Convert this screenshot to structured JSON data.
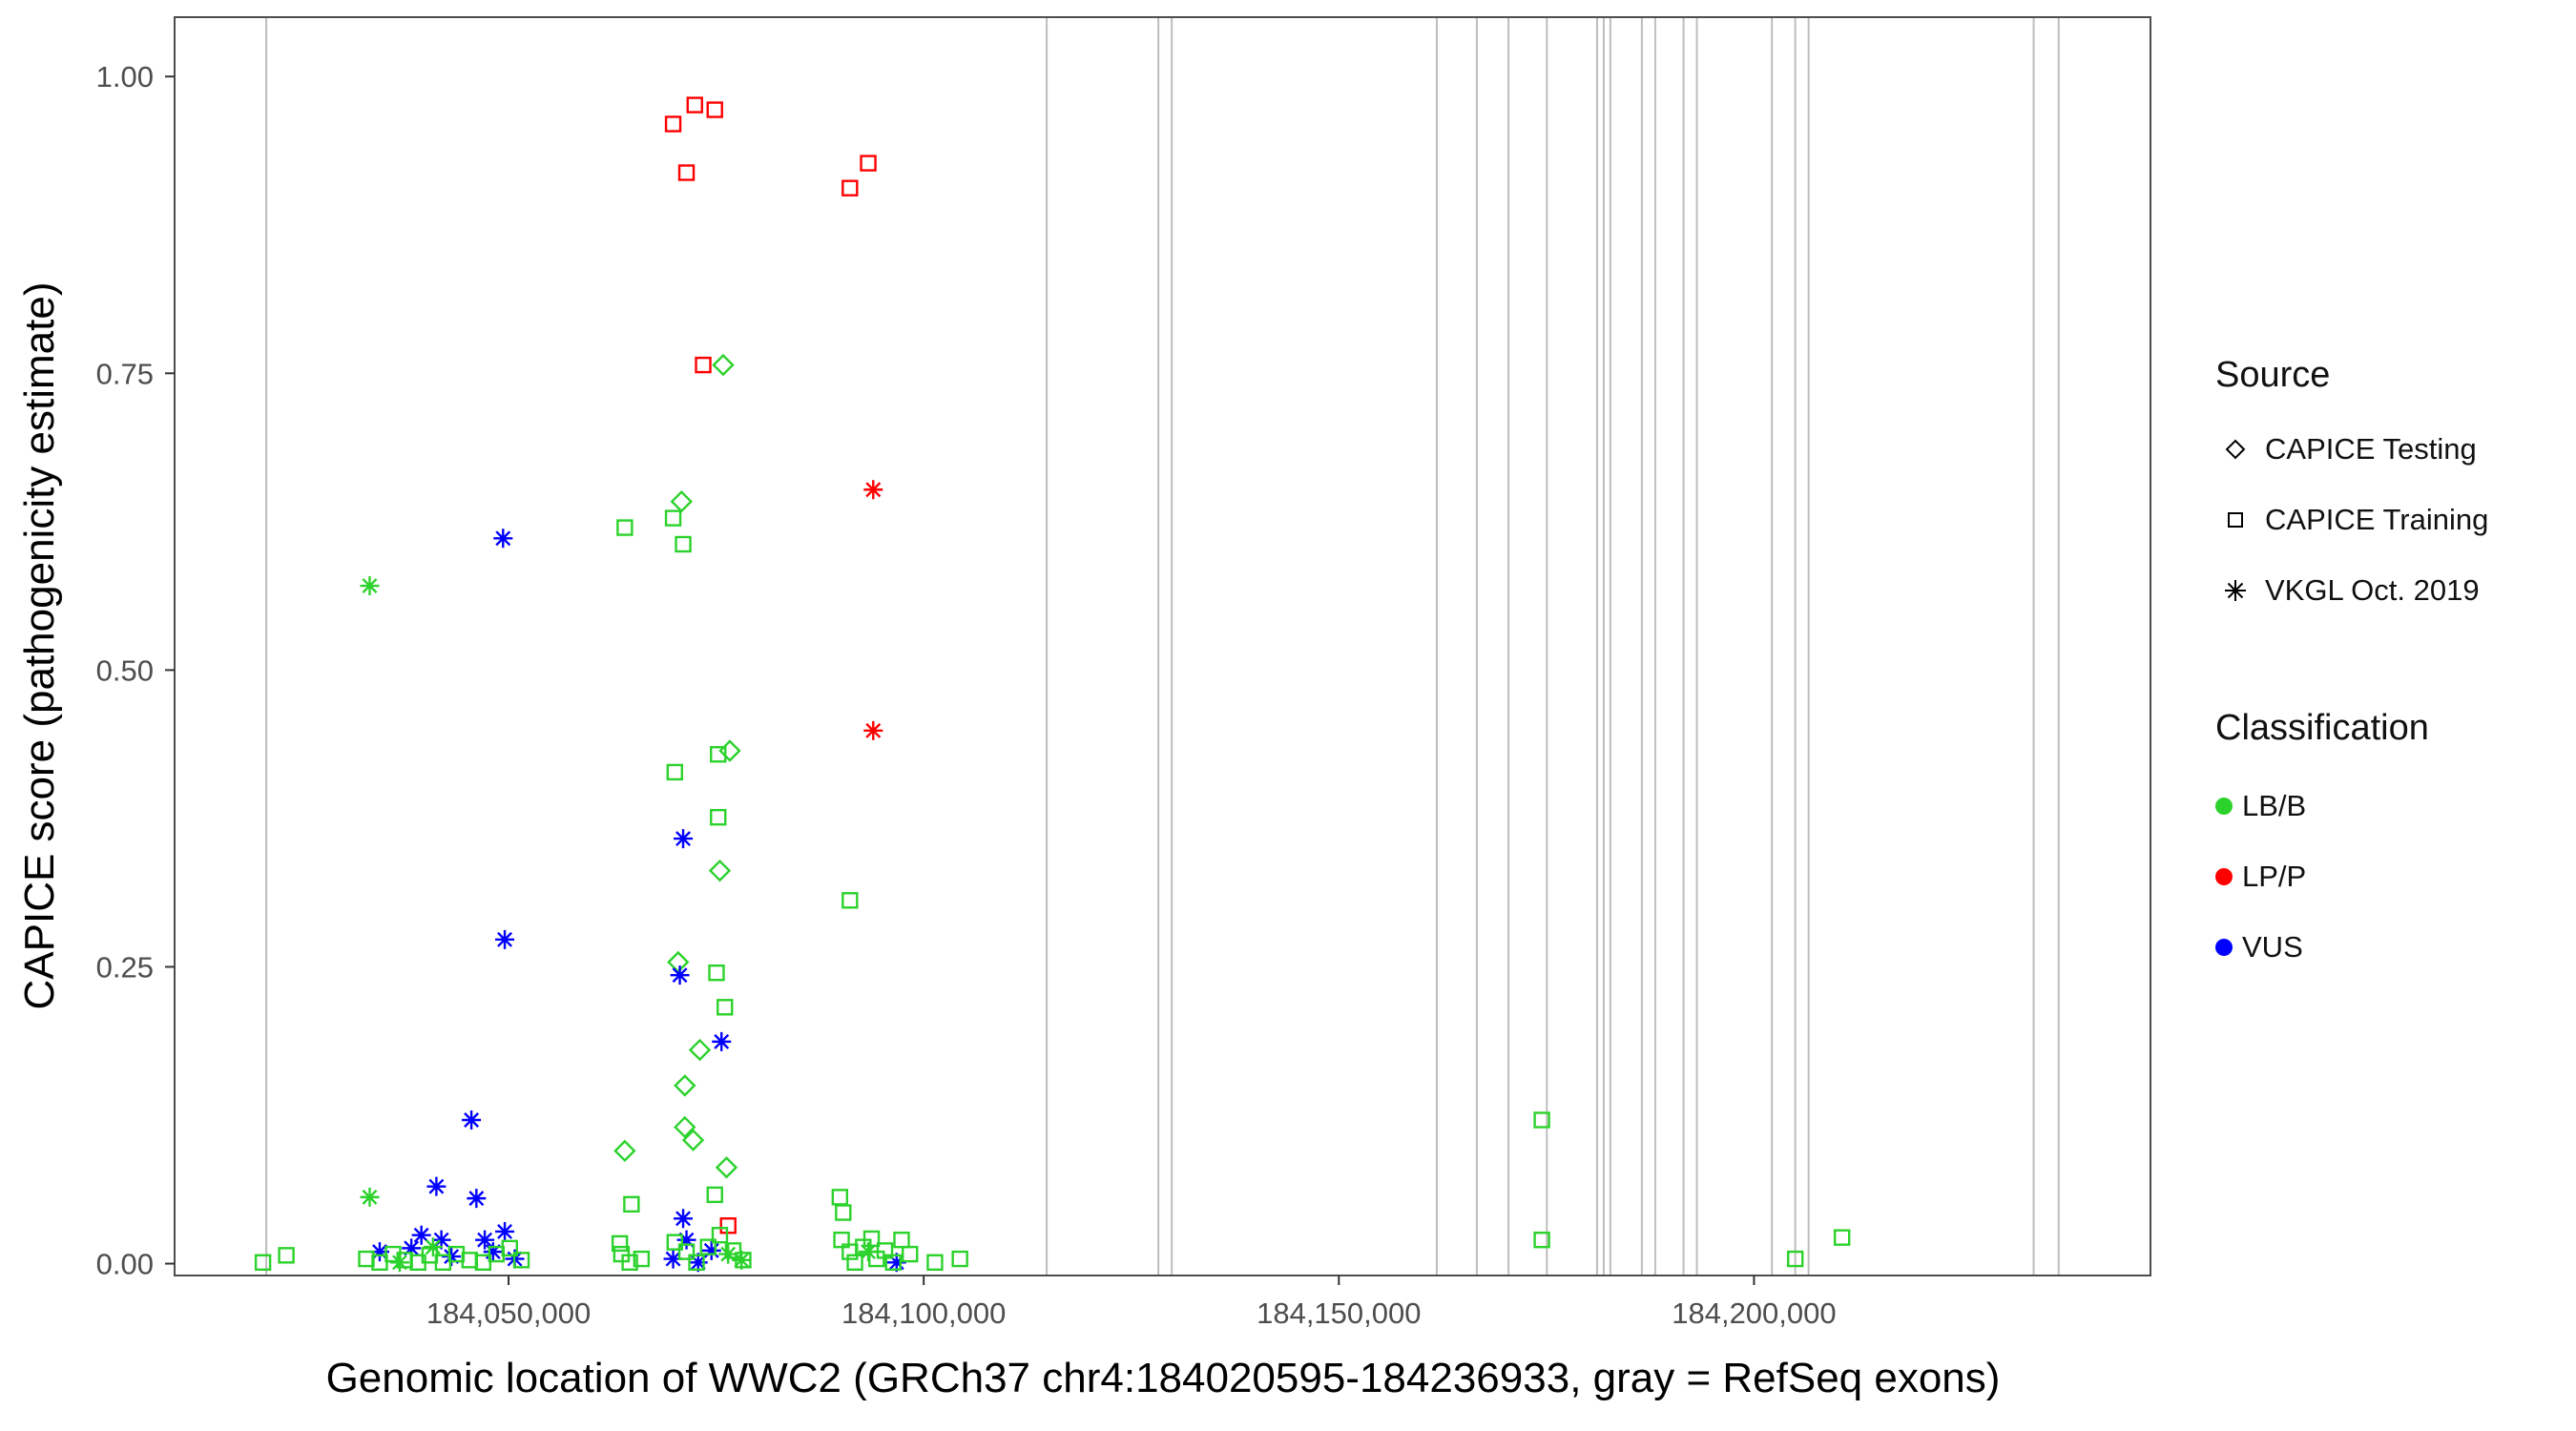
{
  "figure": {
    "x_axis_title": "Genomic location of WWC2 (GRCh37 chr4:184020595-184236933, gray = RefSeq exons)",
    "y_axis_title": "CAPICE score (pathogenicity estimate)"
  },
  "legend": {
    "source": {
      "title": "Source",
      "items": [
        {
          "shape": "diamond",
          "label": "CAPICE Testing"
        },
        {
          "shape": "square",
          "label": "CAPICE Training"
        },
        {
          "shape": "asterisk",
          "label": "VKGL Oct. 2019"
        }
      ]
    },
    "classification": {
      "title": "Classification",
      "items": [
        {
          "color": "#2bd22b",
          "label": "LB/B"
        },
        {
          "color": "#ff0000",
          "label": "LP/P"
        },
        {
          "color": "#0000ff",
          "label": "VUS"
        }
      ]
    }
  },
  "chart_data": {
    "type": "scatter",
    "title": "",
    "xlabel": "Genomic location of WWC2 (GRCh37 chr4:184020595-184236933, gray = RefSeq exons)",
    "ylabel": "CAPICE score (pathogenicity estimate)",
    "gene": {
      "name": "WWC2",
      "assembly": "GRCh37",
      "chrom": "chr4",
      "start": 184020595,
      "end": 184236933
    },
    "xlim": [
      184009778,
      184247750
    ],
    "ylim": [
      -0.01,
      1.05
    ],
    "x_ticks": [
      {
        "value": 184050000,
        "label": "184,050,000"
      },
      {
        "value": 184100000,
        "label": "184,100,000"
      },
      {
        "value": 184150000,
        "label": "184,150,000"
      },
      {
        "value": 184200000,
        "label": "184,200,000"
      }
    ],
    "y_ticks": [
      {
        "value": 0.0,
        "label": "0.00"
      },
      {
        "value": 0.25,
        "label": "0.25"
      },
      {
        "value": 0.5,
        "label": "0.50"
      },
      {
        "value": 0.75,
        "label": "0.75"
      },
      {
        "value": 1.0,
        "label": "1.00"
      }
    ],
    "source_codes": {
      "D": "CAPICE Testing",
      "S": "CAPICE Training",
      "A": "VKGL Oct. 2019"
    },
    "class_codes": {
      "G": "LB/B",
      "R": "LP/P",
      "B": "VUS"
    },
    "colors": {
      "LB/B": "#2bd22b",
      "LP/P": "#ff0000",
      "VUS": "#0000ff"
    },
    "exon_color": "#bdbdbd",
    "exons": [
      184020821,
      184114812,
      184128264,
      184129870,
      184161795,
      184166615,
      184170430,
      184175048,
      184181100,
      184181900,
      184182700,
      184186493,
      184188100,
      184191513,
      184193119,
      184202155,
      184204966,
      184206572,
      184233682,
      184236693
    ],
    "points": [
      [
        184069823,
        0.96,
        "S",
        "R"
      ],
      [
        184072434,
        0.976,
        "S",
        "R"
      ],
      [
        184074844,
        0.972,
        "S",
        "R"
      ],
      [
        184071430,
        0.919,
        "S",
        "R"
      ],
      [
        184091110,
        0.906,
        "S",
        "R"
      ],
      [
        184093319,
        0.927,
        "S",
        "R"
      ],
      [
        184073438,
        0.757,
        "S",
        "R"
      ],
      [
        184076451,
        0.032,
        "S",
        "R"
      ],
      [
        184093922,
        0.652,
        "A",
        "R"
      ],
      [
        184093922,
        0.449,
        "A",
        "R"
      ],
      [
        184075848,
        0.757,
        "D",
        "G"
      ],
      [
        184070827,
        0.642,
        "D",
        "G"
      ],
      [
        184076651,
        0.432,
        "D",
        "G"
      ],
      [
        184075446,
        0.331,
        "D",
        "G"
      ],
      [
        184070426,
        0.254,
        "D",
        "G"
      ],
      [
        184073036,
        0.18,
        "D",
        "G"
      ],
      [
        184071229,
        0.15,
        "D",
        "G"
      ],
      [
        184071229,
        0.115,
        "D",
        "G"
      ],
      [
        184072233,
        0.104,
        "D",
        "G"
      ],
      [
        184063999,
        0.095,
        "D",
        "G"
      ],
      [
        184076250,
        0.081,
        "D",
        "G"
      ],
      [
        184063999,
        0.62,
        "S",
        "G"
      ],
      [
        184069823,
        0.628,
        "S",
        "G"
      ],
      [
        184071028,
        0.606,
        "S",
        "G"
      ],
      [
        184070024,
        0.414,
        "S",
        "G"
      ],
      [
        184075245,
        0.429,
        "S",
        "G"
      ],
      [
        184075245,
        0.376,
        "S",
        "G"
      ],
      [
        184091110,
        0.306,
        "S",
        "G"
      ],
      [
        184075044,
        0.245,
        "S",
        "G"
      ],
      [
        184076049,
        0.216,
        "S",
        "G"
      ],
      [
        184074844,
        0.058,
        "S",
        "G"
      ],
      [
        184064802,
        0.05,
        "S",
        "G"
      ],
      [
        184049339,
        0.611,
        "A",
        "B"
      ],
      [
        184049540,
        0.273,
        "A",
        "B"
      ],
      [
        184071028,
        0.358,
        "A",
        "B"
      ],
      [
        184070627,
        0.243,
        "A",
        "B"
      ],
      [
        184075647,
        0.187,
        "A",
        "B"
      ],
      [
        184045525,
        0.121,
        "A",
        "B"
      ],
      [
        184041307,
        0.065,
        "A",
        "B"
      ],
      [
        184046128,
        0.055,
        "A",
        "B"
      ],
      [
        184039500,
        0.024,
        "A",
        "B"
      ],
      [
        184041910,
        0.02,
        "A",
        "B"
      ],
      [
        184047132,
        0.02,
        "A",
        "B"
      ],
      [
        184038295,
        0.013,
        "A",
        "B"
      ],
      [
        184034479,
        0.01,
        "A",
        "B"
      ],
      [
        184048136,
        0.01,
        "A",
        "B"
      ],
      [
        184043115,
        0.006,
        "A",
        "B"
      ],
      [
        184049540,
        0.027,
        "A",
        "B"
      ],
      [
        184050746,
        0.004,
        "A",
        "B"
      ],
      [
        184069823,
        0.004,
        "A",
        "B"
      ],
      [
        184071430,
        0.02,
        "A",
        "B"
      ],
      [
        184072835,
        0.001,
        "A",
        "B"
      ],
      [
        184074442,
        0.011,
        "A",
        "B"
      ],
      [
        184071028,
        0.038,
        "A",
        "B"
      ],
      [
        184096733,
        0.001,
        "A",
        "B"
      ],
      [
        184033274,
        0.571,
        "A",
        "G"
      ],
      [
        184033274,
        0.056,
        "A",
        "G"
      ],
      [
        184036889,
        0.001,
        "A",
        "G"
      ],
      [
        184040906,
        0.014,
        "A",
        "G"
      ],
      [
        184076451,
        0.008,
        "A",
        "G"
      ],
      [
        184078057,
        0.003,
        "A",
        "G"
      ],
      [
        184093319,
        0.01,
        "A",
        "G"
      ],
      [
        184020421,
        0.001,
        "S",
        "G"
      ],
      [
        184023233,
        0.007,
        "S",
        "G"
      ],
      [
        184032872,
        0.004,
        "S",
        "G"
      ],
      [
        184034479,
        0.001,
        "S",
        "G"
      ],
      [
        184036086,
        0.008,
        "S",
        "G"
      ],
      [
        184037491,
        0.003,
        "S",
        "G"
      ],
      [
        184039098,
        0.001,
        "S",
        "G"
      ],
      [
        184040504,
        0.007,
        "S",
        "G"
      ],
      [
        184042110,
        0.001,
        "S",
        "G"
      ],
      [
        184043717,
        0.008,
        "S",
        "G"
      ],
      [
        184045324,
        0.003,
        "S",
        "G"
      ],
      [
        184046930,
        0.001,
        "S",
        "G"
      ],
      [
        184048537,
        0.008,
        "S",
        "G"
      ],
      [
        184050144,
        0.013,
        "S",
        "G"
      ],
      [
        184051549,
        0.003,
        "S",
        "G"
      ],
      [
        184063397,
        0.017,
        "S",
        "G"
      ],
      [
        184063598,
        0.008,
        "S",
        "G"
      ],
      [
        184064602,
        0.001,
        "S",
        "G"
      ],
      [
        184066008,
        0.004,
        "S",
        "G"
      ],
      [
        184070024,
        0.018,
        "S",
        "G"
      ],
      [
        184071430,
        0.01,
        "S",
        "G"
      ],
      [
        184072635,
        0.001,
        "S",
        "G"
      ],
      [
        184074040,
        0.014,
        "S",
        "G"
      ],
      [
        184075446,
        0.024,
        "S",
        "G"
      ],
      [
        184077053,
        0.011,
        "S",
        "G"
      ],
      [
        184078258,
        0.003,
        "S",
        "G"
      ],
      [
        184089906,
        0.056,
        "S",
        "G"
      ],
      [
        184090307,
        0.043,
        "S",
        "G"
      ],
      [
        184090106,
        0.02,
        "S",
        "G"
      ],
      [
        184091110,
        0.01,
        "S",
        "G"
      ],
      [
        184091713,
        0.001,
        "S",
        "G"
      ],
      [
        184092717,
        0.014,
        "S",
        "G"
      ],
      [
        184093721,
        0.021,
        "S",
        "G"
      ],
      [
        184094324,
        0.004,
        "S",
        "G"
      ],
      [
        184095328,
        0.011,
        "S",
        "G"
      ],
      [
        184096332,
        0.001,
        "S",
        "G"
      ],
      [
        184097336,
        0.02,
        "S",
        "G"
      ],
      [
        184098340,
        0.008,
        "S",
        "G"
      ],
      [
        184101352,
        0.001,
        "S",
        "G"
      ],
      [
        184104364,
        0.004,
        "S",
        "G"
      ],
      [
        184174450,
        0.121,
        "S",
        "G"
      ],
      [
        184174450,
        0.02,
        "S",
        "G"
      ],
      [
        184204975,
        0.004,
        "S",
        "G"
      ],
      [
        184210598,
        0.022,
        "S",
        "G"
      ]
    ]
  }
}
